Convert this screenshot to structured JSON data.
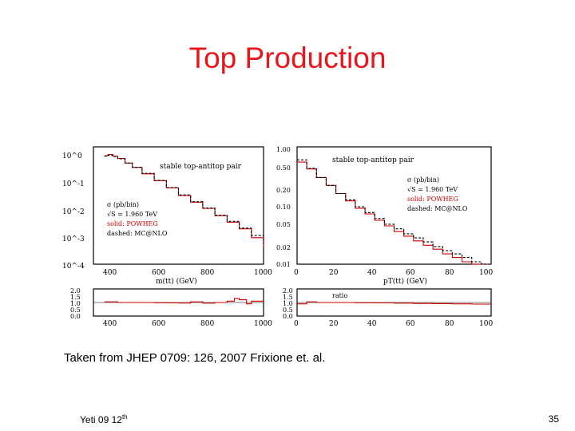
{
  "slide": {
    "title": "Top Production",
    "caption": "Taken from JHEP 0709: 126, 2007 Frixione et. al.",
    "footer_left_main": "Yeti 09 12",
    "footer_left_sup": "th",
    "page_number": "35"
  },
  "colors": {
    "title": "#e8151b",
    "solid": "#cc0000",
    "dashed": "#000000"
  },
  "chart_data": [
    {
      "type": "line",
      "id": "mtt-distribution",
      "title": "stable top-antitop pair",
      "xlabel": "m(tt) (GeV)",
      "ylabel": "",
      "xlim": [
        300,
        1000
      ],
      "ylim": [
        0.0001,
        1
      ],
      "yscale": "log",
      "x_ticks": [
        "400",
        "600",
        "800",
        "1000"
      ],
      "y_ticks": [
        "10^0",
        "10^-1",
        "10^-2",
        "10^-3",
        "10^-4"
      ],
      "legend": [
        "σ (pb/bin)",
        "√S = 1.960 TeV",
        "solid: POWHEG",
        "dashed: MC@NLO"
      ],
      "legend_position": "left",
      "series": [
        {
          "style": "solid",
          "x": [
            345,
            360,
            380,
            400,
            430,
            460,
            500,
            550,
            600,
            650,
            700,
            750,
            800,
            850,
            900,
            950,
            1000
          ],
          "y": [
            0.5,
            0.55,
            0.48,
            0.4,
            0.28,
            0.2,
            0.12,
            0.07,
            0.04,
            0.022,
            0.013,
            0.008,
            0.0045,
            0.0027,
            0.0016,
            0.0008,
            0.0004
          ]
        },
        {
          "style": "dashed",
          "x": [
            345,
            360,
            380,
            400,
            430,
            460,
            500,
            550,
            600,
            650,
            700,
            750,
            800,
            850,
            900,
            950,
            1000
          ],
          "y": [
            0.48,
            0.52,
            0.47,
            0.39,
            0.28,
            0.2,
            0.125,
            0.072,
            0.041,
            0.023,
            0.0135,
            0.0082,
            0.0047,
            0.0029,
            0.0017,
            0.00095,
            0.0005
          ]
        }
      ]
    },
    {
      "type": "line",
      "id": "mtt-ratio",
      "xlim": [
        300,
        1000
      ],
      "ylim": [
        0,
        2
      ],
      "y_ticks": [
        "2.0",
        "1.5",
        "1.0",
        "0.5",
        "0.0"
      ],
      "x_ticks": [
        "400",
        "600",
        "800",
        "1000"
      ],
      "series": [
        {
          "style": "solid",
          "x": [
            345,
            400,
            450,
            500,
            550,
            600,
            650,
            700,
            750,
            800,
            850,
            880,
            900,
            930,
            950,
            1000
          ],
          "y": [
            1.05,
            1.0,
            1.0,
            1.0,
            0.98,
            0.97,
            0.96,
            1.05,
            0.95,
            1.0,
            1.1,
            1.3,
            1.2,
            0.9,
            1.1,
            1.0
          ]
        }
      ]
    },
    {
      "type": "line",
      "id": "pt-distribution",
      "title": "stable top-antitop pair",
      "xlabel": "pT(tt) (GeV)",
      "xlim": [
        0,
        100
      ],
      "ylim": [
        0.01,
        1
      ],
      "yscale": "log",
      "x_ticks": [
        "0",
        "20",
        "40",
        "60",
        "80",
        "100"
      ],
      "y_ticks": [
        "1.00",
        "0.50",
        "0.20",
        "0.10",
        "0.05",
        "0.02",
        "0.01"
      ],
      "legend": [
        "σ (pb/bin)",
        "√S = 1.960 TeV",
        "solid: POWHEG",
        "dashed: MC@NLO"
      ],
      "legend_position": "right",
      "series": [
        {
          "style": "solid",
          "x": [
            0,
            5,
            10,
            15,
            20,
            25,
            30,
            35,
            40,
            45,
            50,
            55,
            60,
            65,
            70,
            75,
            80,
            85,
            90,
            95
          ],
          "y": [
            0.55,
            0.42,
            0.3,
            0.22,
            0.16,
            0.12,
            0.09,
            0.072,
            0.056,
            0.045,
            0.036,
            0.03,
            0.025,
            0.021,
            0.018,
            0.015,
            0.013,
            0.011,
            0.0095,
            0.0085
          ]
        },
        {
          "style": "dashed",
          "x": [
            0,
            5,
            10,
            15,
            20,
            25,
            30,
            35,
            40,
            45,
            50,
            55,
            60,
            65,
            70,
            75,
            80,
            85,
            90,
            95
          ],
          "y": [
            0.6,
            0.43,
            0.3,
            0.22,
            0.16,
            0.125,
            0.095,
            0.076,
            0.06,
            0.048,
            0.04,
            0.033,
            0.028,
            0.024,
            0.02,
            0.017,
            0.015,
            0.013,
            0.011,
            0.0098
          ]
        }
      ]
    },
    {
      "type": "line",
      "id": "pt-ratio",
      "title": "ratio",
      "xlim": [
        0,
        100
      ],
      "ylim": [
        0,
        2
      ],
      "y_ticks": [
        "2.0",
        "1.5",
        "1.0",
        "0.5",
        "0.0"
      ],
      "x_ticks": [
        "0",
        "20",
        "40",
        "60",
        "80",
        "100"
      ],
      "series": [
        {
          "style": "solid",
          "x": [
            0,
            5,
            10,
            20,
            30,
            40,
            50,
            60,
            70,
            80,
            90,
            100
          ],
          "y": [
            0.9,
            1.05,
            1.0,
            1.0,
            0.98,
            0.97,
            0.95,
            0.93,
            0.92,
            0.9,
            0.88,
            0.87
          ]
        }
      ]
    }
  ]
}
